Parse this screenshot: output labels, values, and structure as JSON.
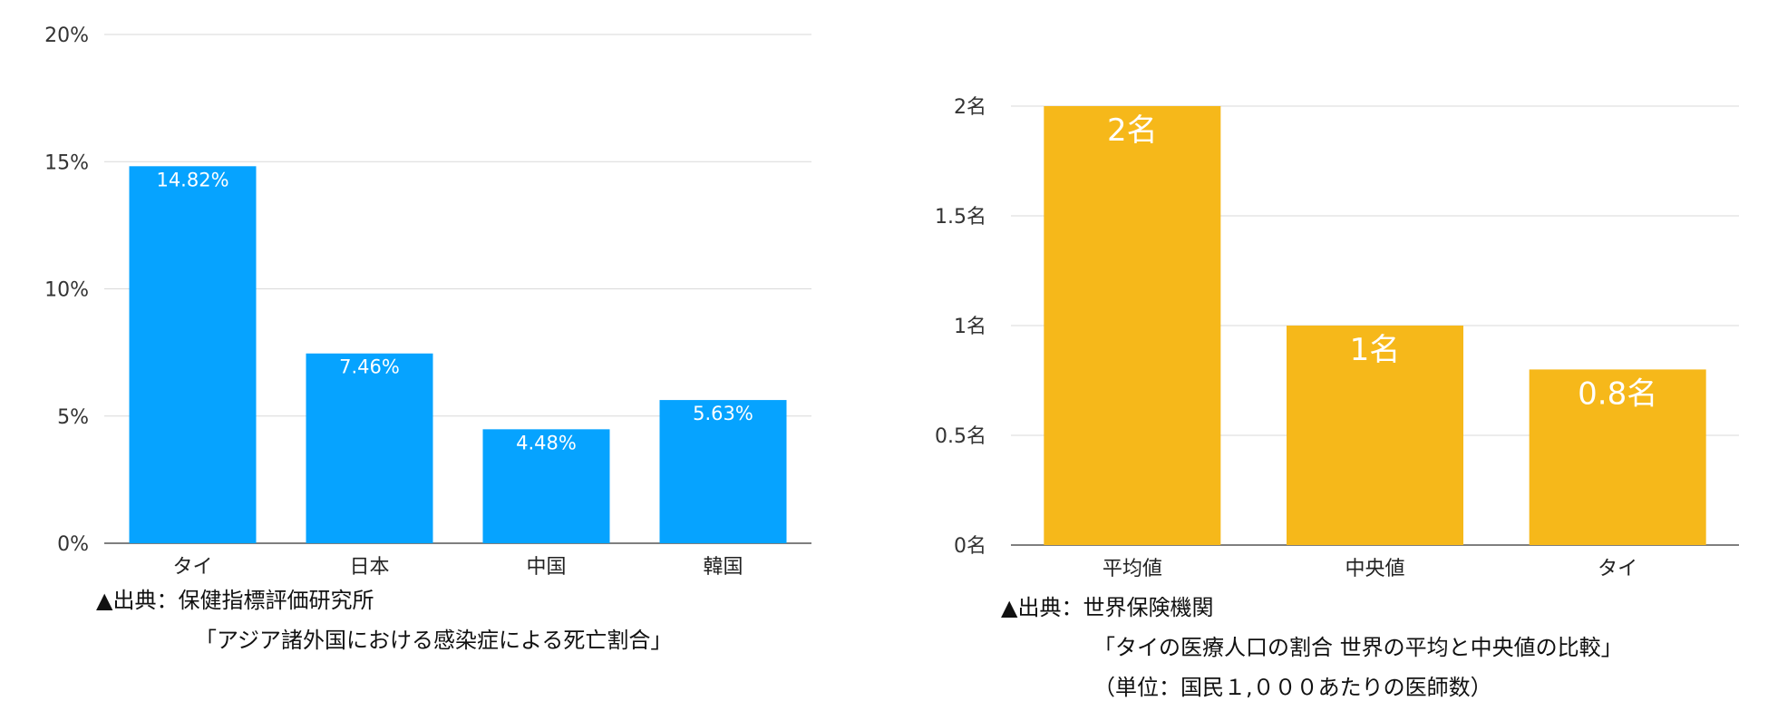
{
  "chart_data": [
    {
      "type": "bar",
      "categories": [
        "タイ",
        "日本",
        "中国",
        "韓国"
      ],
      "values": [
        14.82,
        7.46,
        4.48,
        5.63
      ],
      "value_labels": [
        "14.82%",
        "7.46%",
        "4.48%",
        "5.63%"
      ],
      "ylim": [
        0,
        20
      ],
      "yticks": [
        0,
        5,
        10,
        15,
        20
      ],
      "ytick_labels": [
        "0%",
        "5%",
        "10%",
        "15%",
        "20%"
      ],
      "color": "#06A3FF",
      "grid": true,
      "title": "",
      "xlabel": "",
      "ylabel": "",
      "source_lines": [
        "▲出典：保健指標評価研究所",
        "「アジア諸外国における感染症による死亡割合」"
      ]
    },
    {
      "type": "bar",
      "categories": [
        "平均値",
        "中央値",
        "タイ"
      ],
      "values": [
        2,
        1,
        0.8
      ],
      "value_labels": [
        "2名",
        "1名",
        "0.8名"
      ],
      "ylim": [
        0,
        2
      ],
      "yticks": [
        0,
        0.5,
        1,
        1.5,
        2
      ],
      "ytick_labels": [
        "0名",
        "0.5名",
        "1名",
        "1.5名",
        "2名"
      ],
      "color": "#F6B81A",
      "grid": true,
      "title": "",
      "xlabel": "",
      "ylabel": "",
      "source_lines": [
        "▲出典：世界保険機関",
        "「タイの医療人口の割合 世界の平均と中央値の比較」",
        "（単位：国民１,０００あたりの医師数）"
      ]
    }
  ]
}
